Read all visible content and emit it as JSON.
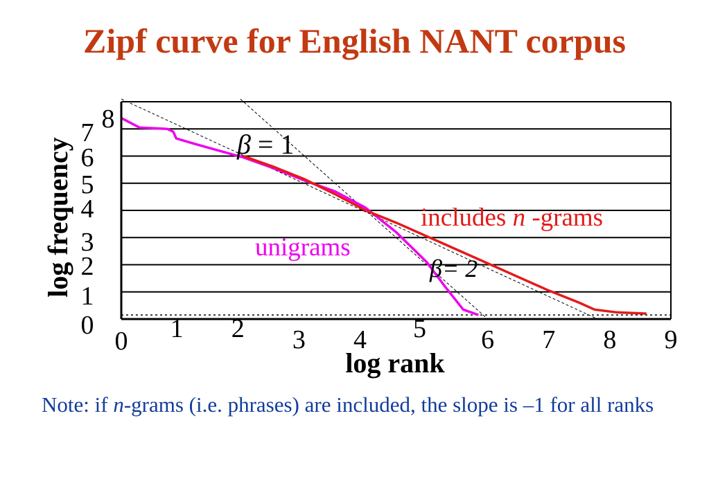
{
  "slide": {
    "title": "Zipf curve for English NANT corpus",
    "note": {
      "prefix": "Note: if ",
      "italic": "n",
      "suffix": "-grams (i.e. phrases) are included, the slope is –1 for all ranks"
    }
  },
  "colors": {
    "title": "#c23a12",
    "ngrams": "#e41a1a",
    "unigrams": "#ee00ee",
    "note": "#123c9c",
    "grid": "#000000"
  },
  "chart_data": {
    "type": "line",
    "xlabel": "log rank",
    "ylabel": "log frequency",
    "xlim": [
      0,
      9
    ],
    "ylim": [
      0,
      8
    ],
    "x_ticks": [
      "0",
      "1",
      "2",
      "3",
      "4",
      "5",
      "6",
      "7",
      "8",
      "9"
    ],
    "y_ticks": [
      "0",
      "1",
      "2",
      "3",
      "4",
      "5",
      "6",
      "7",
      "8"
    ],
    "grid": "horizontal",
    "series": [
      {
        "name": "unigrams",
        "label_text": "unigrams",
        "color": "#ee00ee",
        "points": [
          [
            0,
            7.4
          ],
          [
            0.3,
            7.05
          ],
          [
            0.75,
            7.0
          ],
          [
            0.85,
            6.9
          ],
          [
            0.9,
            6.65
          ],
          [
            1.2,
            6.45
          ],
          [
            1.6,
            6.2
          ],
          [
            2.0,
            5.95
          ],
          [
            2.5,
            5.55
          ],
          [
            3.0,
            5.1
          ],
          [
            3.5,
            4.7
          ],
          [
            4.0,
            4.1
          ],
          [
            4.5,
            3.2
          ],
          [
            5.0,
            2.1
          ],
          [
            5.3,
            1.2
          ],
          [
            5.6,
            0.35
          ],
          [
            5.85,
            0.15
          ]
        ]
      },
      {
        "name": "includes n-grams",
        "label_prefix": "includes ",
        "label_italic": "n",
        "label_suffix": " -grams",
        "color": "#e41a1a",
        "points": [
          [
            2.0,
            6.0
          ],
          [
            2.5,
            5.6
          ],
          [
            3.0,
            5.15
          ],
          [
            3.5,
            4.6
          ],
          [
            4.0,
            4.0
          ],
          [
            4.5,
            3.55
          ],
          [
            5.0,
            3.05
          ],
          [
            5.5,
            2.55
          ],
          [
            6.0,
            2.05
          ],
          [
            6.5,
            1.55
          ],
          [
            7.0,
            1.05
          ],
          [
            7.5,
            0.6
          ],
          [
            7.75,
            0.35
          ],
          [
            8.1,
            0.25
          ],
          [
            8.6,
            0.2
          ]
        ]
      }
    ],
    "reference_lines": [
      {
        "label_prefix": "",
        "label_symbol": "β",
        "label_suffix": " = 1",
        "slope": -1,
        "points": [
          [
            0,
            8.1
          ],
          [
            7.8,
            0.0
          ]
        ]
      },
      {
        "label_prefix": "",
        "label_symbol": "β",
        "label_suffix": "= 2",
        "slope": -2,
        "points": [
          [
            1.95,
            8.1
          ],
          [
            6.0,
            0.0
          ]
        ]
      }
    ],
    "baseline": 0.15
  }
}
